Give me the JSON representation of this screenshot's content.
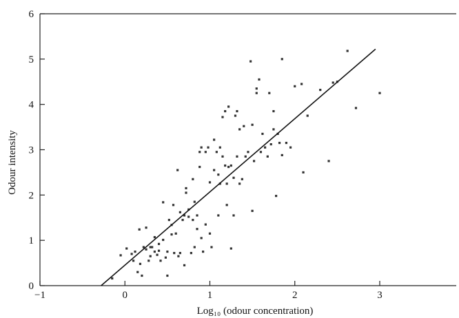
{
  "chart_data": {
    "type": "scatter",
    "xlabel": "Log₁₀ (odour concentration)",
    "ylabel": "Odour intensity",
    "xlim": [
      -1,
      4
    ],
    "ylim": [
      0,
      6
    ],
    "xticks": [
      "−1",
      "0",
      "1",
      "2",
      "3"
    ],
    "xtick_values": [
      -1,
      0,
      1,
      2,
      3
    ],
    "yticks": [
      "0",
      "1",
      "2",
      "3",
      "4",
      "5",
      "6"
    ],
    "ytick_values": [
      0,
      1,
      2,
      3,
      4,
      5,
      6
    ],
    "grid": false,
    "legend": "none",
    "fit_line": {
      "x": [
        -0.28,
        2.95
      ],
      "y": [
        0.0,
        5.22
      ]
    },
    "points": [
      [
        -0.15,
        0.16
      ],
      [
        -0.05,
        0.67
      ],
      [
        0.02,
        0.82
      ],
      [
        0.08,
        0.7
      ],
      [
        0.1,
        0.55
      ],
      [
        0.12,
        0.75
      ],
      [
        0.15,
        0.3
      ],
      [
        0.17,
        1.24
      ],
      [
        0.18,
        0.48
      ],
      [
        0.2,
        0.22
      ],
      [
        0.22,
        0.85
      ],
      [
        0.25,
        0.8
      ],
      [
        0.25,
        1.28
      ],
      [
        0.28,
        0.55
      ],
      [
        0.3,
        0.65
      ],
      [
        0.3,
        0.85
      ],
      [
        0.32,
        0.85
      ],
      [
        0.35,
        1.07
      ],
      [
        0.35,
        0.75
      ],
      [
        0.38,
        0.68
      ],
      [
        0.4,
        0.77
      ],
      [
        0.4,
        0.92
      ],
      [
        0.42,
        0.55
      ],
      [
        0.45,
        1.84
      ],
      [
        0.45,
        1.01
      ],
      [
        0.48,
        0.62
      ],
      [
        0.5,
        0.75
      ],
      [
        0.5,
        0.22
      ],
      [
        0.52,
        1.45
      ],
      [
        0.55,
        1.13
      ],
      [
        0.55,
        1.34
      ],
      [
        0.57,
        1.78
      ],
      [
        0.58,
        0.72
      ],
      [
        0.6,
        1.15
      ],
      [
        0.62,
        2.55
      ],
      [
        0.63,
        0.65
      ],
      [
        0.65,
        0.72
      ],
      [
        0.65,
        1.62
      ],
      [
        0.68,
        1.45
      ],
      [
        0.7,
        1.55
      ],
      [
        0.7,
        0.45
      ],
      [
        0.72,
        2.05
      ],
      [
        0.72,
        2.15
      ],
      [
        0.75,
        1.68
      ],
      [
        0.75,
        1.52
      ],
      [
        0.78,
        0.72
      ],
      [
        0.8,
        2.35
      ],
      [
        0.8,
        1.45
      ],
      [
        0.82,
        1.85
      ],
      [
        0.82,
        0.85
      ],
      [
        0.85,
        1.55
      ],
      [
        0.85,
        1.25
      ],
      [
        0.88,
        2.62
      ],
      [
        0.88,
        2.95
      ],
      [
        0.9,
        1.05
      ],
      [
        0.9,
        3.05
      ],
      [
        0.92,
        0.75
      ],
      [
        0.95,
        1.35
      ],
      [
        0.95,
        2.95
      ],
      [
        0.98,
        3.05
      ],
      [
        1.0,
        1.15
      ],
      [
        1.0,
        2.28
      ],
      [
        1.02,
        0.85
      ],
      [
        1.05,
        2.55
      ],
      [
        1.05,
        3.22
      ],
      [
        1.08,
        2.95
      ],
      [
        1.1,
        1.55
      ],
      [
        1.1,
        2.45
      ],
      [
        1.12,
        2.25
      ],
      [
        1.12,
        3.05
      ],
      [
        1.15,
        2.85
      ],
      [
        1.15,
        3.72
      ],
      [
        1.18,
        2.65
      ],
      [
        1.18,
        3.85
      ],
      [
        1.2,
        1.78
      ],
      [
        1.2,
        2.25
      ],
      [
        1.22,
        3.95
      ],
      [
        1.22,
        2.62
      ],
      [
        1.25,
        0.82
      ],
      [
        1.25,
        2.65
      ],
      [
        1.28,
        1.55
      ],
      [
        1.28,
        2.38
      ],
      [
        1.3,
        3.75
      ],
      [
        1.32,
        3.85
      ],
      [
        1.32,
        2.85
      ],
      [
        1.35,
        2.25
      ],
      [
        1.35,
        3.45
      ],
      [
        1.38,
        2.35
      ],
      [
        1.4,
        3.52
      ],
      [
        1.42,
        2.85
      ],
      [
        1.45,
        2.95
      ],
      [
        1.48,
        4.95
      ],
      [
        1.5,
        1.65
      ],
      [
        1.5,
        3.55
      ],
      [
        1.52,
        2.75
      ],
      [
        1.55,
        4.35
      ],
      [
        1.55,
        4.25
      ],
      [
        1.58,
        4.55
      ],
      [
        1.6,
        2.95
      ],
      [
        1.62,
        3.35
      ],
      [
        1.65,
        3.05
      ],
      [
        1.68,
        2.85
      ],
      [
        1.7,
        4.25
      ],
      [
        1.72,
        3.12
      ],
      [
        1.75,
        3.85
      ],
      [
        1.75,
        3.45
      ],
      [
        1.78,
        1.98
      ],
      [
        1.8,
        3.35
      ],
      [
        1.82,
        3.15
      ],
      [
        1.85,
        5.0
      ],
      [
        1.85,
        2.88
      ],
      [
        1.9,
        3.15
      ],
      [
        1.95,
        3.05
      ],
      [
        2.0,
        4.4
      ],
      [
        2.08,
        4.45
      ],
      [
        2.1,
        2.5
      ],
      [
        2.15,
        3.75
      ],
      [
        2.3,
        4.32
      ],
      [
        2.4,
        2.75
      ],
      [
        2.45,
        4.48
      ],
      [
        2.5,
        4.5
      ],
      [
        2.62,
        5.18
      ],
      [
        2.72,
        3.92
      ],
      [
        3.0,
        4.25
      ]
    ]
  }
}
